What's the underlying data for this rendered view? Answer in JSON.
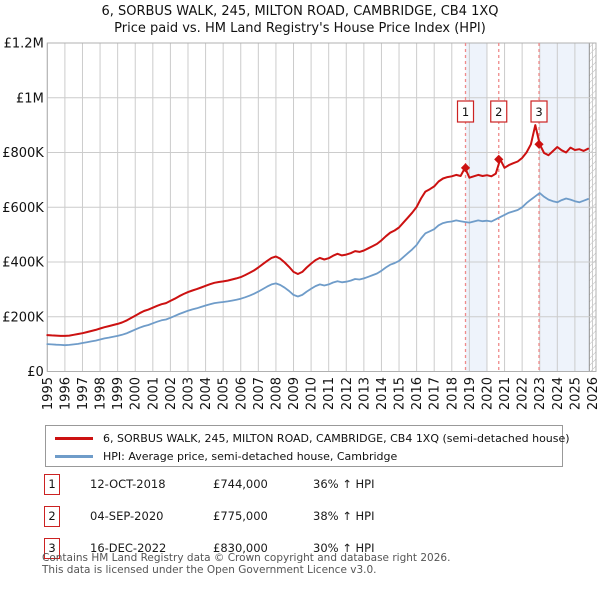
{
  "title": {
    "line1": "6, SORBUS WALK, 245, MILTON ROAD, CAMBRIDGE, CB4 1XQ",
    "line2": "Price paid vs. HM Land Registry's House Price Index (HPI)"
  },
  "chart_data": {
    "type": "line",
    "x_start": 1995,
    "x_step": 0.25,
    "xlim": [
      1995,
      2026.2
    ],
    "ylim": [
      0,
      1200
    ],
    "grid": true,
    "unit": "thousand GBP",
    "x_ticks": [
      1995,
      1996,
      1997,
      1998,
      1999,
      2000,
      2001,
      2002,
      2003,
      2004,
      2005,
      2006,
      2007,
      2008,
      2009,
      2010,
      2011,
      2012,
      2013,
      2014,
      2015,
      2016,
      2017,
      2018,
      2019,
      2020,
      2021,
      2022,
      2023,
      2024,
      2025,
      2026
    ],
    "y_ticks": [
      {
        "value": 0,
        "label": "£0"
      },
      {
        "value": 200,
        "label": "£200K"
      },
      {
        "value": 400,
        "label": "£400K"
      },
      {
        "value": 600,
        "label": "£600K"
      },
      {
        "value": 800,
        "label": "£800K"
      },
      {
        "value": 1000,
        "label": "£1M"
      },
      {
        "value": 1200,
        "label": "£1.2M"
      }
    ],
    "series": [
      {
        "name": "6, SORBUS WALK, 245, MILTON ROAD, CAMBRIDGE, CB4 1XQ (semi-detached house)",
        "color": "#cc1111",
        "values": [
          133,
          132,
          131,
          130,
          130,
          131,
          134,
          137,
          140,
          144,
          148,
          152,
          157,
          162,
          166,
          170,
          174,
          179,
          186,
          195,
          204,
          213,
          221,
          226,
          233,
          240,
          246,
          250,
          258,
          266,
          275,
          283,
          290,
          296,
          301,
          307,
          313,
          319,
          324,
          327,
          329,
          332,
          336,
          340,
          345,
          352,
          360,
          369,
          380,
          392,
          404,
          415,
          420,
          412,
          398,
          382,
          364,
          356,
          364,
          380,
          394,
          407,
          415,
          409,
          414,
          423,
          430,
          424,
          427,
          432,
          440,
          437,
          442,
          450,
          458,
          466,
          479,
          494,
          507,
          515,
          526,
          544,
          562,
          580,
          601,
          632,
          657,
          666,
          676,
          694,
          705,
          710,
          713,
          718,
          714,
          744,
          708,
          713,
          718,
          714,
          717,
          713,
          723,
          775,
          744,
          754,
          761,
          767,
          780,
          800,
          830,
          900,
          830,
          798,
          790,
          805,
          820,
          808,
          800,
          818,
          809,
          812,
          806,
          814
        ]
      },
      {
        "name": "HPI: Average price, semi-detached house, Cambridge",
        "color": "#6f9cc9",
        "values": [
          100,
          99,
          98,
          97,
          96,
          97,
          99,
          101,
          104,
          107,
          110,
          113,
          117,
          121,
          124,
          127,
          130,
          134,
          139,
          146,
          153,
          160,
          166,
          170,
          176,
          182,
          187,
          190,
          196,
          203,
          210,
          216,
          222,
          227,
          231,
          236,
          241,
          246,
          250,
          252,
          254,
          256,
          259,
          262,
          266,
          271,
          277,
          284,
          292,
          301,
          310,
          318,
          322,
          316,
          306,
          294,
          280,
          274,
          280,
          292,
          302,
          312,
          318,
          314,
          318,
          325,
          330,
          326,
          328,
          332,
          338,
          336,
          340,
          346,
          352,
          358,
          368,
          380,
          390,
          396,
          404,
          418,
          432,
          446,
          462,
          486,
          505,
          512,
          520,
          534,
          542,
          546,
          548,
          552,
          549,
          546,
          544,
          548,
          552,
          549,
          551,
          548,
          556,
          564,
          572,
          580,
          585,
          590,
          600,
          615,
          628,
          640,
          652,
          638,
          628,
          622,
          618,
          626,
          632,
          628,
          622,
          618,
          624,
          630
        ]
      }
    ],
    "sale_markers": [
      {
        "num": "1",
        "x": 2018.78,
        "value": 744
      },
      {
        "num": "2",
        "x": 2020.67,
        "value": 775
      },
      {
        "num": "3",
        "x": 2022.96,
        "value": 830
      }
    ],
    "sale_lines": [
      2018.78,
      2020.67,
      2022.96
    ],
    "ownership_bands": [
      {
        "from": 2018.78,
        "to": 2020.0
      },
      {
        "from": 2022.96,
        "to": 2025.82
      }
    ],
    "hatch_region": {
      "from": 2025.82,
      "to": 2026.2
    },
    "colors": {
      "grid": "#cccccc",
      "plot_border": "#b0b0b0",
      "band_fill": "#eef3fb",
      "sale_line": "#ef8a8a",
      "marker_box_border": "#cc2222",
      "hatch": "#bbbbbb",
      "data_end_line": "#909090"
    }
  },
  "legend": {
    "items": [
      {
        "label": "6, SORBUS WALK, 245, MILTON ROAD, CAMBRIDGE, CB4 1XQ (semi-detached house)",
        "color": "#cc1111"
      },
      {
        "label": "HPI: Average price, semi-detached house, Cambridge",
        "color": "#6f9cc9"
      }
    ]
  },
  "transactions": [
    {
      "num": "1",
      "date": "12-OCT-2018",
      "price": "£744,000",
      "hpi": "36% ↑ HPI"
    },
    {
      "num": "2",
      "date": "04-SEP-2020",
      "price": "£775,000",
      "hpi": "38% ↑ HPI"
    },
    {
      "num": "3",
      "date": "16-DEC-2022",
      "price": "£830,000",
      "hpi": "30% ↑ HPI"
    }
  ],
  "footer": {
    "line1": "Contains HM Land Registry data © Crown copyright and database right 2026.",
    "line2": "This data is licensed under the Open Government Licence v3.0."
  }
}
